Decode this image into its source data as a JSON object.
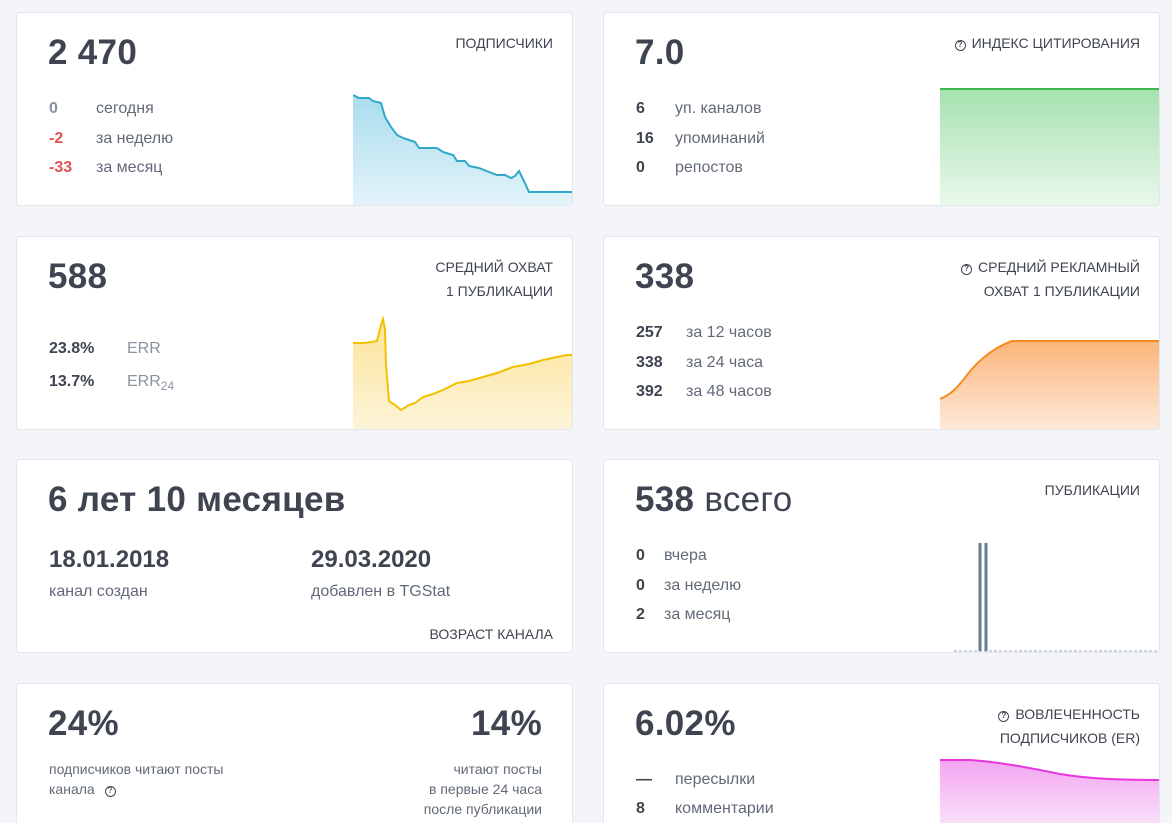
{
  "subscribers": {
    "value": "2 470",
    "label": "ПОДПИСЧИКИ",
    "rows": [
      {
        "value": "0",
        "text": "сегодня"
      },
      {
        "value": "-2",
        "text": "за неделю"
      },
      {
        "value": "-33",
        "text": "за месяц"
      }
    ]
  },
  "citation": {
    "value": "7.0",
    "label": "ИНДЕКС ЦИТИРОВАНИЯ",
    "rows": [
      {
        "value": "6",
        "text": "уп. каналов"
      },
      {
        "value": "16",
        "text": "упоминаний"
      },
      {
        "value": "0",
        "text": "репостов"
      }
    ]
  },
  "avg_reach": {
    "value": "588",
    "label_line1": "СРЕДНИЙ ОХВАТ",
    "label_line2": "1 ПУБЛИКАЦИИ",
    "rows": [
      {
        "value": "23.8%",
        "text": "ERR"
      },
      {
        "value": "13.7%",
        "text": "ERR",
        "sub": "24"
      }
    ]
  },
  "ad_reach": {
    "value": "338",
    "label_line1": "СРЕДНИЙ РЕКЛАМНЫЙ",
    "label_line2": "ОХВАТ 1 ПУБЛИКАЦИИ",
    "rows": [
      {
        "value": "257",
        "text": "за 12 часов"
      },
      {
        "value": "338",
        "text": "за 24 часа"
      },
      {
        "value": "392",
        "text": "за 48 часов"
      }
    ]
  },
  "age": {
    "value": "6 лет 10 месяцев",
    "created_date": "18.01.2018",
    "created_label": "канал создан",
    "added_date": "29.03.2020",
    "added_label": "добавлен в TGStat",
    "label": "ВОЗРАСТ КАНАЛА"
  },
  "publications": {
    "value": "538",
    "value_suffix": "всего",
    "label": "ПУБЛИКАЦИИ",
    "rows": [
      {
        "value": "0",
        "text": "вчера"
      },
      {
        "value": "0",
        "text": "за неделю"
      },
      {
        "value": "2",
        "text": "за месяц"
      }
    ]
  },
  "readers": {
    "left_value": "24%",
    "left_text_line1": "подписчиков читают посты",
    "left_text_line2": "канала",
    "right_value": "14%",
    "right_text_line1": "читают посты",
    "right_text_line2": "в первые 24 часа",
    "right_text_line3": "после публикации"
  },
  "engagement": {
    "value": "6.02%",
    "label_line1": "ВОВЛЕЧЕННОСТЬ",
    "label_line2": "ПОДПИСЧИКОВ (ER)",
    "rows": [
      {
        "value": "—",
        "text": "пересылки"
      },
      {
        "value": "8",
        "text": "комментарии"
      }
    ]
  },
  "colors": {
    "subscribers": "#2fa8cc",
    "citation": "#3fb84f",
    "avg_reach": "#f2c100",
    "ad_reach": "#f58c1f",
    "publications": "#6b7d92",
    "engagement": "#e835e0"
  },
  "icons": {
    "help": "question-circle-icon"
  }
}
